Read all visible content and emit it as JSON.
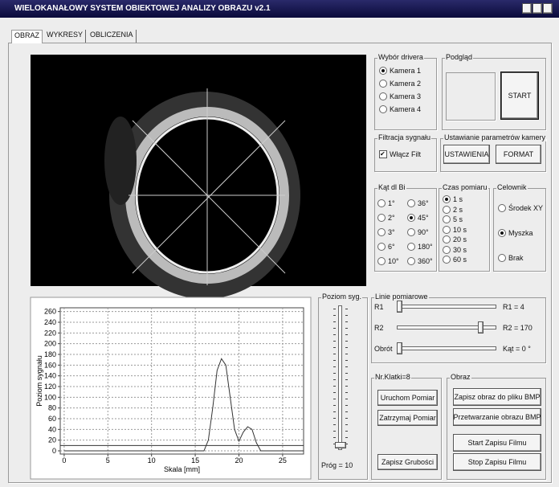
{
  "window": {
    "title": "WIELOKANAŁOWY SYSTEM OBIEKTOWEJ ANALIZY OBRAZU v2.1"
  },
  "tabs": {
    "items": [
      "OBRAZ",
      "WYKRESY",
      "OBLICZENIA"
    ],
    "selected": 0
  },
  "driver": {
    "title": "Wybór drivera",
    "options": [
      "Kamera 1",
      "Kamera 2",
      "Kamera 3",
      "Kamera 4"
    ],
    "selected": 0
  },
  "preview": {
    "title": "Podgląd",
    "button": "START"
  },
  "filter": {
    "title": "Filtracja sygnału",
    "checkbox": "Włącz Filt",
    "checked": true
  },
  "camera_settings": {
    "title": "Ustawianie parametrów kamery",
    "buttons": [
      "USTAWIENIA",
      "FORMAT"
    ]
  },
  "angle": {
    "title": "Kąt dl Bi",
    "options": [
      "1°",
      "36°",
      "2°",
      "45°",
      "3°",
      "90°",
      "6°",
      "180°",
      "10°",
      "360°"
    ],
    "selected": 3
  },
  "time": {
    "title": "Czas pomiaru",
    "options": [
      "1 s",
      "2 s",
      "5 s",
      "10 s",
      "20 s",
      "30 s",
      "60 s"
    ],
    "selected": 0
  },
  "crosshair": {
    "title": "Celownik",
    "options": [
      "Środek XY",
      "Myszka",
      "Brak"
    ],
    "selected": 1
  },
  "signal_level": {
    "title": "Poziom syg.",
    "threshold_label": "Próg = 10"
  },
  "lines": {
    "title": "Linie pomiarowe",
    "rows": [
      {
        "name": "R1",
        "value": "R1 = 4"
      },
      {
        "name": "R2",
        "value": "R2 = 170"
      },
      {
        "name": "Obrót",
        "value": "Kąt = 0 °"
      }
    ]
  },
  "frame": {
    "title": "Nr.Klatki=8",
    "buttons": [
      "Uruchom Pomiar",
      "Zatrzymaj Pomiar",
      "Zapisz Grubości"
    ]
  },
  "image": {
    "title": "Obraz",
    "buttons": [
      "Zapisz obraz do pliku BMP",
      "Przetwarzanie obrazu BMP",
      "Start Zapisu Filmu",
      "Stop Zapisu Filmu"
    ]
  },
  "chart_data": {
    "type": "line",
    "x_label": "Skala [mm]",
    "y_label": "Poziom sygnału",
    "x": [
      0,
      16,
      16.5,
      17,
      17.5,
      18,
      18.5,
      19,
      19.5,
      20,
      20.5,
      21,
      21.5,
      22,
      22.5,
      27.4
    ],
    "series": [
      {
        "color": "#333333",
        "values": [
          0,
          0,
          20,
          80,
          150,
          172,
          160,
          100,
          40,
          18,
          35,
          45,
          40,
          15,
          0,
          0
        ]
      }
    ],
    "threshold": 10,
    "xlim": [
      -0.45,
      27.4
    ],
    "ylim": [
      -6,
      267
    ],
    "xticks": [
      0,
      5,
      10,
      15,
      20,
      25
    ],
    "yticks": [
      0,
      20,
      40,
      60,
      80,
      100,
      120,
      140,
      160,
      180,
      200,
      220,
      240,
      260
    ],
    "grid": true
  }
}
